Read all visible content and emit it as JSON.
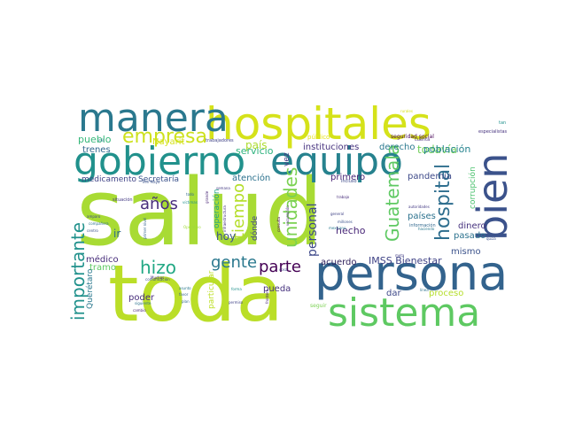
{
  "words": [
    {
      "text": "salud",
      "color": "#a8db34",
      "weight": 100
    },
    {
      "text": "toda",
      "color": "#bade28",
      "weight": 85
    },
    {
      "text": "persona",
      "color": "#33638d",
      "weight": 75
    },
    {
      "text": "hospitales",
      "color": "#d5e21a",
      "weight": 72
    },
    {
      "text": "sistema",
      "color": "#5ec962",
      "weight": 62
    },
    {
      "text": "gobierno",
      "color": "#21918c",
      "weight": 60
    },
    {
      "text": "equipo",
      "color": "#26828e",
      "weight": 58
    },
    {
      "text": "manera",
      "color": "#2a788e",
      "weight": 55
    },
    {
      "text": "bien",
      "color": "#3b528b",
      "weight": 52
    },
    {
      "text": "empresa",
      "color": "#cde11d",
      "weight": 30
    },
    {
      "text": "hospital",
      "color": "#2e6e8e",
      "weight": 28
    },
    {
      "text": "importante",
      "color": "#21918c",
      "weight": 26
    },
    {
      "text": "Guatemala",
      "color": "#5ec962",
      "weight": 26
    },
    {
      "text": "unidades",
      "color": "#7ad151",
      "weight": 26
    },
    {
      "text": "hizo",
      "color": "#22a884",
      "weight": 26
    },
    {
      "text": "años",
      "color": "#472d7b",
      "weight": 24
    },
    {
      "text": "gente",
      "color": "#2a788e",
      "weight": 24
    },
    {
      "text": "tiempo",
      "color": "#b5de2b",
      "weight": 24
    },
    {
      "text": "parte",
      "color": "#440154",
      "weight": 22
    },
    {
      "text": "personal",
      "color": "#3e4989",
      "weight": 20
    },
    {
      "text": "servicio",
      "color": "#2db27d",
      "weight": 14
    },
    {
      "text": "todavía",
      "color": "#6ece58",
      "weight": 14
    },
    {
      "text": "pueblo",
      "color": "#35b779",
      "weight": 13
    },
    {
      "text": "Nayarit",
      "color": "#d5e21a",
      "weight": 12
    },
    {
      "text": "país",
      "color": "#addc30",
      "weight": 14
    },
    {
      "text": "instituciones",
      "color": "#46327e",
      "weight": 12
    },
    {
      "text": "derecho",
      "color": "#2a788e",
      "weight": 12
    },
    {
      "text": "población",
      "color": "#25838e",
      "weight": 13
    },
    {
      "text": "trenes",
      "color": "#31688e",
      "weight": 12
    },
    {
      "text": "medicamento",
      "color": "#414487",
      "weight": 11
    },
    {
      "text": "Secretaría",
      "color": "#3b528b",
      "weight": 11
    },
    {
      "text": "atención",
      "color": "#2c728e",
      "weight": 13
    },
    {
      "text": "vez",
      "color": "#443a83",
      "weight": 11
    },
    {
      "text": "primero",
      "color": "#482475",
      "weight": 13
    },
    {
      "text": "pandemia",
      "color": "#3e4a89",
      "weight": 12
    },
    {
      "text": "corrupción",
      "color": "#4ac16d",
      "weight": 12
    },
    {
      "text": "ir",
      "color": "#30698e",
      "weight": 14
    },
    {
      "text": "hoy",
      "color": "#3b528b",
      "weight": 14
    },
    {
      "text": "operación",
      "color": "#20a386",
      "weight": 11
    },
    {
      "text": "dónde",
      "color": "#414487",
      "weight": 11
    },
    {
      "text": "hecho",
      "color": "#482677",
      "weight": 13
    },
    {
      "text": "países",
      "color": "#2c728e",
      "weight": 13
    },
    {
      "text": "dinero",
      "color": "#46327e",
      "weight": 13
    },
    {
      "text": "pasado",
      "color": "#2c728e",
      "weight": 13
    },
    {
      "text": "mismo",
      "color": "#3b528b",
      "weight": 12
    },
    {
      "text": "médico",
      "color": "#472c7a",
      "weight": 13
    },
    {
      "text": "tramo",
      "color": "#5ec962",
      "weight": 13
    },
    {
      "text": "acuerdo",
      "color": "#2d1e5b",
      "weight": 13
    },
    {
      "text": "IMSS Bienestar",
      "color": "#414487",
      "weight": 14
    },
    {
      "text": "Querétaro",
      "color": "#2a788e",
      "weight": 11
    },
    {
      "text": "poder",
      "color": "#472d7b",
      "weight": 12
    },
    {
      "text": "particular",
      "color": "#bddf26",
      "weight": 11
    },
    {
      "text": "pueda",
      "color": "#46327e",
      "weight": 13
    },
    {
      "text": "dar",
      "color": "#3e4989",
      "weight": 12
    },
    {
      "text": "proceso",
      "color": "#b5de2b",
      "weight": 12
    },
    {
      "text": "seguir",
      "color": "#7ad151",
      "weight": 7
    },
    {
      "text": "público",
      "color": "#e5e419",
      "weight": 8
    },
    {
      "text": "seguridad social",
      "color": "#440154",
      "weight": 7
    },
    {
      "text": "especialistas",
      "color": "#46327e",
      "weight": 6
    },
    {
      "text": "cuenta",
      "color": "#472d7b",
      "weight": 6
    },
    {
      "text": "trabajadores",
      "color": "#414487",
      "weight": 6
    },
    {
      "text": "incluso",
      "color": "#3e4989",
      "weight": 6
    },
    {
      "text": "Tren Maya",
      "color": "#3b528b",
      "weight": 5
    },
    {
      "text": "situación",
      "color": "#443a83",
      "weight": 5
    },
    {
      "text": "compañera",
      "color": "#2c728e",
      "weight": 5
    },
    {
      "text": "comunicación",
      "color": "#3b528b",
      "weight": 5
    },
    {
      "text": "asunto",
      "color": "#2a788e",
      "weight": 5
    },
    {
      "text": "favor",
      "color": "#33638d",
      "weight": 5
    },
    {
      "text": "plan",
      "color": "#31688e",
      "weight": 5
    },
    {
      "text": "forma",
      "color": "#21918c",
      "weight": 5
    },
    {
      "text": "permiso",
      "color": "#414487",
      "weight": 5
    },
    {
      "text": "frontera",
      "color": "#482475",
      "weight": 5
    },
    {
      "text": "línea",
      "color": "#2c728e",
      "weight": 5
    },
    {
      "text": "trabajo",
      "color": "#472d7b",
      "weight": 5
    },
    {
      "text": "general",
      "color": "#414487",
      "weight": 5
    },
    {
      "text": "millones",
      "color": "#3b528b",
      "weight": 5
    },
    {
      "text": "mexicano",
      "color": "#2a788e",
      "weight": 5
    },
    {
      "text": "autoridades",
      "color": "#443a83",
      "weight": 5
    },
    {
      "text": "información",
      "color": "#31688e",
      "weight": 5
    },
    {
      "text": "cambio",
      "color": "#482677",
      "weight": 5
    },
    {
      "text": "siguiente",
      "color": "#2c728e",
      "weight": 4
    },
    {
      "text": "primer nivel",
      "color": "#33638d",
      "weight": 4
    },
    {
      "text": "Muchas",
      "color": "#472c7a",
      "weight": 4
    },
    {
      "text": "amparo",
      "color": "#3e4989",
      "weight": 4
    },
    {
      "text": "centro",
      "color": "#3b528b",
      "weight": 4
    },
    {
      "text": "meta",
      "color": "#433e85",
      "weight": 4
    },
    {
      "text": "cosa",
      "color": "#414487",
      "weight": 4
    },
    {
      "text": "haciendo",
      "color": "#2a788e",
      "weight": 4
    },
    {
      "text": "quizá",
      "color": "#3b528b",
      "weight": 4
    },
    {
      "text": "infraestructura",
      "color": "#46327e",
      "weight": 4
    },
    {
      "text": "consulta",
      "color": "#440154",
      "weight": 4
    },
    {
      "text": "vacunación",
      "color": "#472d7b",
      "weight": 4
    },
    {
      "text": "grande",
      "color": "#482475",
      "weight": 4
    },
    {
      "text": "semana",
      "color": "#443a83",
      "weight": 4
    },
    {
      "text": "todo",
      "color": "#31688e",
      "weight": 4
    },
    {
      "text": "víctimas",
      "color": "#21918c",
      "weight": 4
    },
    {
      "text": "Operativo",
      "color": "#a0da39",
      "weight": 4
    },
    {
      "text": "mil",
      "color": "#2c728e",
      "weight": 4
    },
    {
      "text": "tan",
      "color": "#21918c",
      "weight": 4
    },
    {
      "text": "rurales",
      "color": "#d8e219",
      "weight": 4
    }
  ]
}
